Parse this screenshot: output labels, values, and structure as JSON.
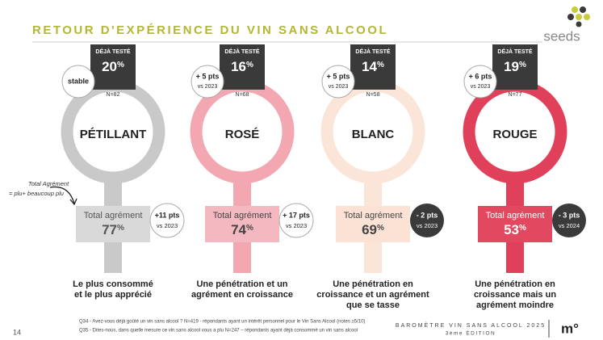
{
  "header": {
    "title": "RETOUR D'EXPÉRIENCE DU VIN SANS ALCOOL",
    "logo": "seeds"
  },
  "annotation": [
    "Total Agrément",
    "= plu+ beaucoup plu"
  ],
  "columns": [
    {
      "tested_label": "DÉJÀ TESTÉ",
      "tested": "20",
      "unit": "%",
      "badge": [
        "stable"
      ],
      "n": "N=82",
      "name": "PÉTILLANT",
      "agreement_label": "Total agrément",
      "agreement": "77",
      "agreement_unit": "%",
      "change": [
        "+11 pts",
        "vs 2023"
      ],
      "caption": [
        "Le plus consommé",
        "et le plus apprécié"
      ],
      "color": "#c9c9c9",
      "box_color": "#d9d9d9",
      "text_color": "#555555",
      "badge_dark": false
    },
    {
      "tested_label": "DÉJÀ TESTÉ",
      "tested": "16",
      "unit": "%",
      "badge": [
        "+ 5 pts",
        "vs 2023"
      ],
      "n": "N=68",
      "name": "ROSÉ",
      "agreement_label": "Total agrément",
      "agreement": "74",
      "agreement_unit": "%",
      "change": [
        "+ 17 pts",
        "vs 2023"
      ],
      "caption": [
        "Une pénétration et un",
        "agrément en croissance"
      ],
      "color": "#f2a7b1",
      "box_color": "#f4b8c0",
      "text_color": "#444444",
      "badge_dark": false
    },
    {
      "tested_label": "DÉJÀ TESTÉ",
      "tested": "14",
      "unit": "%",
      "badge": [
        "+ 5 pts",
        "vs 2023"
      ],
      "n": "N=58",
      "name": "BLANC",
      "agreement_label": "Total agrément",
      "agreement": "69",
      "agreement_unit": "%",
      "change": [
        "- 2 pts",
        "vs 2023"
      ],
      "caption": [
        "Une pénétration en",
        "croissance et un agrément",
        "que se tasse"
      ],
      "color": "#fbe4d8",
      "box_color": "#fbe2d5",
      "text_color": "#444444",
      "badge_dark": true
    },
    {
      "tested_label": "DÉJÀ TESTÉ",
      "tested": "19",
      "unit": "%",
      "badge": [
        "+ 6 pts",
        "vs 2023"
      ],
      "n": "N=77",
      "name": "ROUGE",
      "agreement_label": "Total agrément",
      "agreement": "53",
      "agreement_unit": "%",
      "change": [
        "- 3 pts",
        "vs 2024"
      ],
      "caption": [
        "Une pénétration en",
        "croissance mais un",
        "agrément moindre"
      ],
      "color": "#e0405a",
      "box_color": "#e2485f",
      "text_color": "#ffffff",
      "badge_dark": true
    }
  ],
  "footer": {
    "notes": [
      "Q34 - Avez-vous déjà goûté un vin sans alcool ? N=419 - répondants ayant un intérêt personnel pour le Vin Sans Alcool (notes ≥5/10)",
      "Q35 - Dites-nous, dans quelle mesure ce vin sans alcool vous a plu N=247 – répondants ayant déjà consommé un vin sans alcool"
    ],
    "page": "14",
    "study": "BAROMÈTRE VIN SANS ALCOOL 2025",
    "edition": "3ème ÉDITION",
    "brand": "m°"
  }
}
